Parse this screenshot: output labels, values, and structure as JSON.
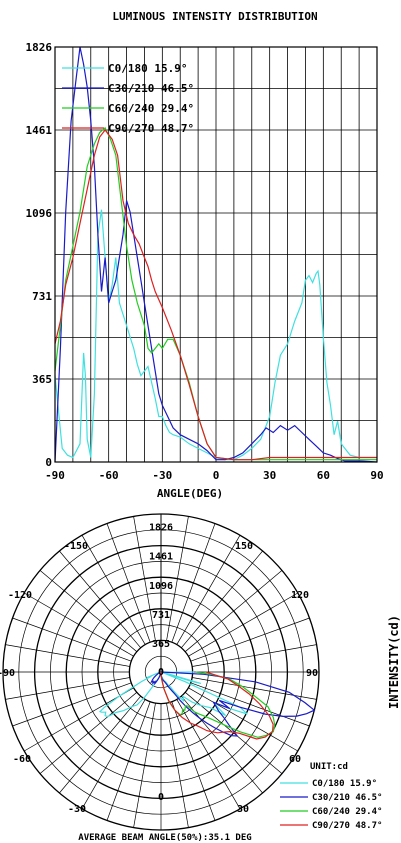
{
  "colors": {
    "c0": "#40e0e0",
    "c30": "#1a1ac8",
    "c60": "#22cc22",
    "c90": "#e02020"
  },
  "chart_data": [
    {
      "type": "line",
      "title": "LUMINOUS INTENSITY DISTRIBUTION",
      "xlabel": "ANGLE(DEG)",
      "ylabel": "",
      "xlim": [
        -90,
        90
      ],
      "ylim": [
        0,
        1826
      ],
      "x_ticks": [
        "-90",
        "-60",
        "-30",
        "0",
        "30",
        "60",
        "90"
      ],
      "y_ticks": [
        "0",
        "365",
        "731",
        "1096",
        "1461",
        "1826"
      ],
      "grid": true,
      "legend_position": "top-left",
      "series": [
        {
          "name": "C0/180 15.9°",
          "color_key": "c0",
          "points": [
            [
              -90,
              380
            ],
            [
              -86,
              60
            ],
            [
              -83,
              30
            ],
            [
              -80,
              20
            ],
            [
              -76,
              80
            ],
            [
              -74,
              480
            ],
            [
              -73,
              380
            ],
            [
              -72,
              100
            ],
            [
              -70,
              20
            ],
            [
              -68,
              300
            ],
            [
              -66,
              1000
            ],
            [
              -64,
              1110
            ],
            [
              -62,
              900
            ],
            [
              -60,
              700
            ],
            [
              -58,
              780
            ],
            [
              -56,
              900
            ],
            [
              -54,
              700
            ],
            [
              -52,
              650
            ],
            [
              -50,
              600
            ],
            [
              -48,
              550
            ],
            [
              -46,
              500
            ],
            [
              -44,
              430
            ],
            [
              -42,
              380
            ],
            [
              -40,
              400
            ],
            [
              -38,
              420
            ],
            [
              -36,
              350
            ],
            [
              -34,
              280
            ],
            [
              -32,
              200
            ],
            [
              -30,
              200
            ],
            [
              -28,
              160
            ],
            [
              -26,
              130
            ],
            [
              -24,
              120
            ],
            [
              -20,
              110
            ],
            [
              -15,
              80
            ],
            [
              -10,
              60
            ],
            [
              -5,
              40
            ],
            [
              0,
              20
            ],
            [
              5,
              10
            ],
            [
              10,
              10
            ],
            [
              15,
              30
            ],
            [
              20,
              60
            ],
            [
              25,
              100
            ],
            [
              30,
              200
            ],
            [
              33,
              350
            ],
            [
              36,
              470
            ],
            [
              40,
              520
            ],
            [
              44,
              620
            ],
            [
              48,
              700
            ],
            [
              50,
              800
            ],
            [
              52,
              820
            ],
            [
              54,
              790
            ],
            [
              56,
              830
            ],
            [
              57,
              840
            ],
            [
              58,
              780
            ],
            [
              60,
              550
            ],
            [
              62,
              350
            ],
            [
              64,
              250
            ],
            [
              66,
              120
            ],
            [
              68,
              180
            ],
            [
              70,
              80
            ],
            [
              75,
              30
            ],
            [
              80,
              20
            ],
            [
              90,
              20
            ]
          ]
        },
        {
          "name": "C30/210 46.5°",
          "color_key": "c30",
          "points": [
            [
              -90,
              0
            ],
            [
              -87,
              500
            ],
            [
              -84,
              1100
            ],
            [
              -81,
              1500
            ],
            [
              -78,
              1700
            ],
            [
              -76,
              1826
            ],
            [
              -74,
              1750
            ],
            [
              -72,
              1650
            ],
            [
              -70,
              1500
            ],
            [
              -68,
              1300
            ],
            [
              -66,
              1000
            ],
            [
              -64,
              750
            ],
            [
              -62,
              900
            ],
            [
              -60,
              700
            ],
            [
              -58,
              750
            ],
            [
              -56,
              800
            ],
            [
              -54,
              900
            ],
            [
              -52,
              1000
            ],
            [
              -50,
              1150
            ],
            [
              -48,
              1100
            ],
            [
              -46,
              1000
            ],
            [
              -44,
              900
            ],
            [
              -42,
              800
            ],
            [
              -40,
              700
            ],
            [
              -38,
              600
            ],
            [
              -36,
              500
            ],
            [
              -34,
              400
            ],
            [
              -32,
              300
            ],
            [
              -30,
              250
            ],
            [
              -27,
              200
            ],
            [
              -24,
              150
            ],
            [
              -20,
              120
            ],
            [
              -15,
              100
            ],
            [
              -10,
              80
            ],
            [
              -5,
              50
            ],
            [
              0,
              10
            ],
            [
              5,
              10
            ],
            [
              10,
              20
            ],
            [
              15,
              40
            ],
            [
              20,
              80
            ],
            [
              25,
              120
            ],
            [
              28,
              150
            ],
            [
              32,
              130
            ],
            [
              36,
              160
            ],
            [
              40,
              140
            ],
            [
              44,
              160
            ],
            [
              48,
              130
            ],
            [
              52,
              100
            ],
            [
              56,
              70
            ],
            [
              60,
              40
            ],
            [
              64,
              30
            ],
            [
              68,
              15
            ],
            [
              72,
              5
            ],
            [
              80,
              5
            ],
            [
              90,
              0
            ]
          ]
        },
        {
          "name": "C60/240 29.4°",
          "color_key": "c60",
          "points": [
            [
              -90,
              400
            ],
            [
              -87,
              600
            ],
            [
              -84,
              800
            ],
            [
              -80,
              950
            ],
            [
              -76,
              1100
            ],
            [
              -72,
              1300
            ],
            [
              -68,
              1400
            ],
            [
              -65,
              1450
            ],
            [
              -62,
              1470
            ],
            [
              -59,
              1420
            ],
            [
              -56,
              1350
            ],
            [
              -53,
              1150
            ],
            [
              -50,
              950
            ],
            [
              -47,
              800
            ],
            [
              -44,
              700
            ],
            [
              -42,
              650
            ],
            [
              -40,
              600
            ],
            [
              -38,
              500
            ],
            [
              -36,
              480
            ],
            [
              -34,
              500
            ],
            [
              -32,
              520
            ],
            [
              -30,
              500
            ],
            [
              -27,
              540
            ],
            [
              -24,
              540
            ],
            [
              -20,
              470
            ],
            [
              -15,
              350
            ],
            [
              -10,
              200
            ],
            [
              -5,
              80
            ],
            [
              0,
              20
            ],
            [
              10,
              10
            ],
            [
              20,
              10
            ],
            [
              30,
              10
            ],
            [
              90,
              10
            ]
          ]
        },
        {
          "name": "C90/270 48.7°",
          "color_key": "c90",
          "points": [
            [
              -90,
              520
            ],
            [
              -87,
              620
            ],
            [
              -84,
              780
            ],
            [
              -80,
              900
            ],
            [
              -76,
              1050
            ],
            [
              -72,
              1200
            ],
            [
              -68,
              1350
            ],
            [
              -65,
              1430
            ],
            [
              -62,
              1461
            ],
            [
              -58,
              1420
            ],
            [
              -55,
              1350
            ],
            [
              -52,
              1150
            ],
            [
              -49,
              1050
            ],
            [
              -46,
              1000
            ],
            [
              -43,
              960
            ],
            [
              -40,
              900
            ],
            [
              -38,
              860
            ],
            [
              -36,
              800
            ],
            [
              -34,
              750
            ],
            [
              -30,
              680
            ],
            [
              -25,
              580
            ],
            [
              -20,
              470
            ],
            [
              -15,
              340
            ],
            [
              -10,
              200
            ],
            [
              -5,
              80
            ],
            [
              0,
              20
            ],
            [
              10,
              10
            ],
            [
              20,
              10
            ],
            [
              30,
              20
            ],
            [
              40,
              20
            ],
            [
              50,
              20
            ],
            [
              60,
              20
            ],
            [
              90,
              20
            ]
          ]
        }
      ]
    },
    {
      "type": "polar",
      "title": "",
      "angle_labels": [
        "-150",
        "150",
        "-120",
        "120",
        "-90",
        "90",
        "-60",
        "60",
        "-30",
        "30",
        "0"
      ],
      "radial_labels": [
        "1826",
        "1461",
        "1096",
        "731",
        "365",
        "0"
      ],
      "side_label": "INTENSITY(cd)",
      "unit_label": "UNIT:cd",
      "legend_position": "bottom-right",
      "footer": "AVERAGE BEAM ANGLE(50%):35.1 DEG"
    }
  ]
}
